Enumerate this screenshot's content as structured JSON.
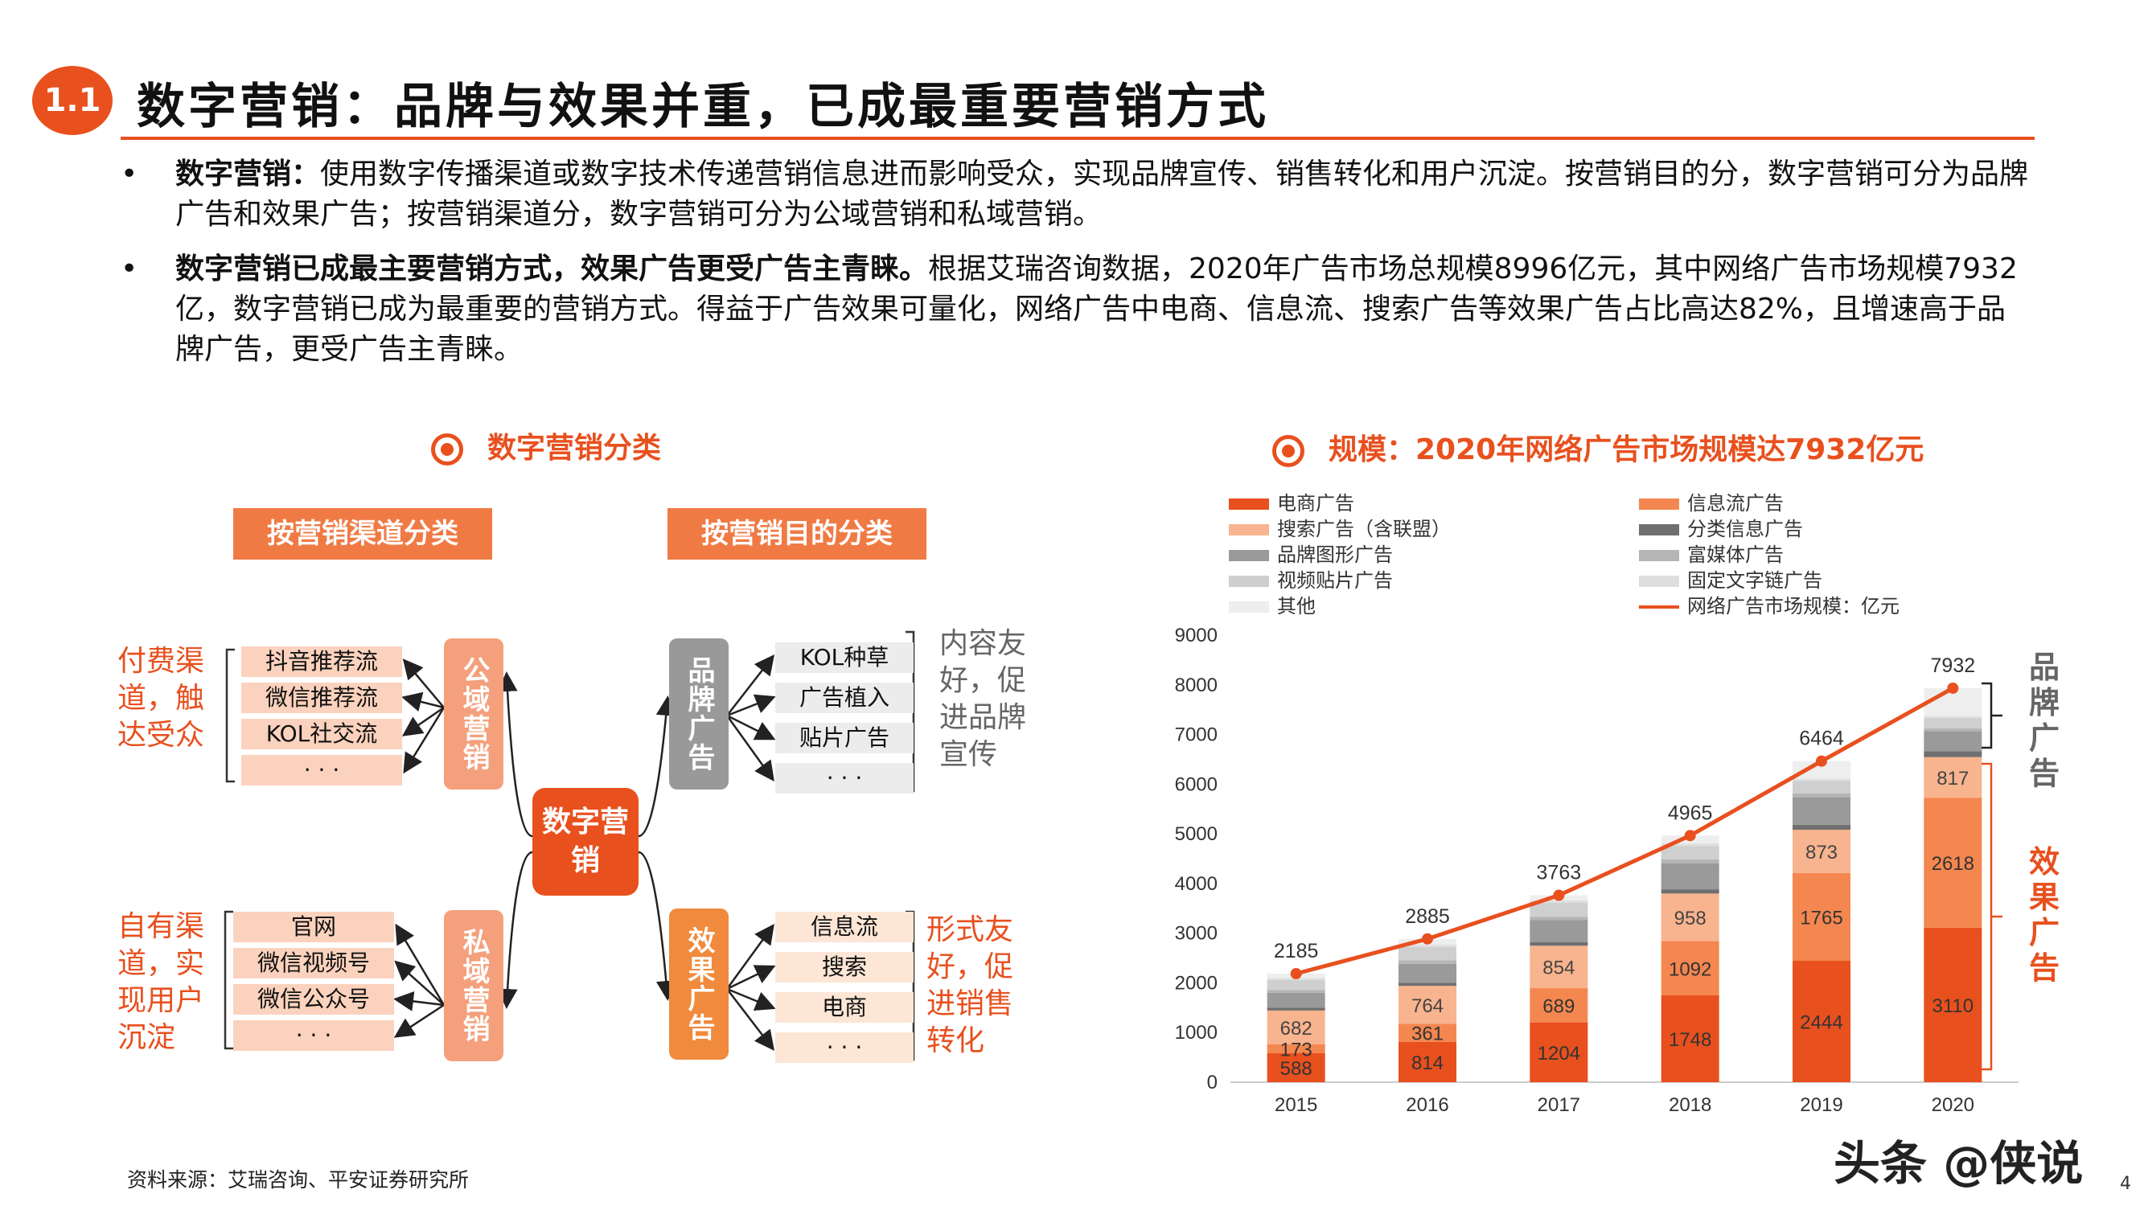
{
  "header": {
    "badge": "1.1",
    "title": "数字营销：品牌与效果并重，已成最重要营销方式"
  },
  "bullets": [
    {
      "lead": "数字营销：",
      "text": "使用数字传播渠道或数字技术传递营销信息进而影响受众，实现品牌宣传、销售转化和用户沉淀。按营销目的分，数字营销可分为品牌广告和效果广告；按营销渠道分，数字营销可分为公域营销和私域营销。"
    },
    {
      "lead": "数字营销已成最主要营销方式，效果广告更受广告主青睐。",
      "text": "根据艾瑞咨询数据，2020年广告市场总规模8996亿元，其中网络广告市场规模7932亿，数字营销已成为最重要的营销方式。得益于广告效果可量化，网络广告中电商、信息流、搜索广告等效果广告占比高达82%，且增速高于品牌广告，更受广告主青睐。"
    }
  ],
  "left_section": {
    "heading": "数字营销分类",
    "channel_banner": "按营销渠道分类",
    "purpose_banner": "按营销目的分类",
    "core": "数字营销",
    "public": {
      "label": "公域营销",
      "items": [
        "抖音推荐流",
        "微信推荐流",
        "KOL社交流",
        "· · ·"
      ],
      "note": "付费渠道，触达受众"
    },
    "private": {
      "label": "私域营销",
      "items": [
        "官网",
        "微信视频号",
        "微信公众号",
        "· · ·"
      ],
      "note": "自有渠道，实现用户沉淀"
    },
    "brand": {
      "label": "品牌广告",
      "items": [
        "KOL种草",
        "广告植入",
        "贴片广告",
        "· · ·"
      ],
      "note": "内容友好，促进品牌宣传"
    },
    "effect": {
      "label": "效果广告",
      "items": [
        "信息流",
        "搜索",
        "电商",
        "· · ·"
      ],
      "note": "形式友好，促进销售转化"
    }
  },
  "right_section": {
    "heading": "规模：2020年网络广告市场规模达7932亿元",
    "brand_side": "品牌广告",
    "effect_side": "效果广告"
  },
  "chart_data": {
    "type": "bar",
    "stacked": true,
    "categories": [
      "2015",
      "2016",
      "2017",
      "2018",
      "2019",
      "2020"
    ],
    "ylim": [
      0,
      9000
    ],
    "yticks": [
      0,
      1000,
      2000,
      3000,
      4000,
      5000,
      6000,
      7000,
      8000,
      9000
    ],
    "series": [
      {
        "name": "电商广告",
        "color": "#e8501e",
        "values": [
          588,
          814,
          1204,
          1748,
          2444,
          3110
        ]
      },
      {
        "name": "信息流广告",
        "color": "#f4874f",
        "values": [
          173,
          361,
          689,
          1092,
          1765,
          2618
        ]
      },
      {
        "name": "搜索广告（含联盟）",
        "color": "#f8b48e",
        "values": [
          682,
          764,
          854,
          958,
          873,
          817
        ]
      },
      {
        "name": "分类信息广告",
        "color": "#6f6f6f",
        "values": [
          55,
          65,
          75,
          85,
          100,
          120
        ]
      },
      {
        "name": "品牌图形广告",
        "color": "#9a9a9a",
        "values": [
          300,
          380,
          440,
          520,
          560,
          400
        ]
      },
      {
        "name": "富媒体广告",
        "color": "#b5b5b5",
        "values": [
          60,
          70,
          70,
          80,
          70,
          60
        ]
      },
      {
        "name": "视频贴片广告",
        "color": "#cfcfcf",
        "values": [
          200,
          270,
          280,
          270,
          250,
          200
        ]
      },
      {
        "name": "固定文字链广告",
        "color": "#dedede",
        "values": [
          40,
          45,
          50,
          50,
          45,
          40
        ]
      },
      {
        "name": "其他",
        "color": "#eeeeee",
        "values": [
          87,
          116,
          101,
          162,
          357,
          567
        ]
      }
    ],
    "line": {
      "name": "网络广告市场规模：亿元",
      "color": "#e8501e",
      "values": [
        2185,
        2885,
        3763,
        4965,
        6464,
        7932
      ]
    },
    "value_labels": [
      {
        "year": "2015",
        "labels": [
          "588",
          "173",
          "682"
        ]
      },
      {
        "year": "2016",
        "labels": [
          "814",
          "361",
          "764"
        ]
      },
      {
        "year": "2017",
        "labels": [
          "1204",
          "689",
          "854"
        ]
      },
      {
        "year": "2018",
        "labels": [
          "1748",
          "1092",
          "958"
        ]
      },
      {
        "year": "2019",
        "labels": [
          "2444",
          "1765",
          "873"
        ]
      },
      {
        "year": "2020",
        "labels": [
          "3110",
          "2618",
          "817"
        ]
      }
    ]
  },
  "legend_order": [
    "电商广告",
    "信息流广告",
    "搜索广告（含联盟）",
    "分类信息广告",
    "品牌图形广告",
    "富媒体广告",
    "视频贴片广告",
    "固定文字链广告",
    "其他",
    "网络广告市场规模：亿元"
  ],
  "footer": {
    "source": "资料来源：艾瑞咨询、平安证券研究所",
    "watermark": "头条 @侠说",
    "page": "4"
  }
}
